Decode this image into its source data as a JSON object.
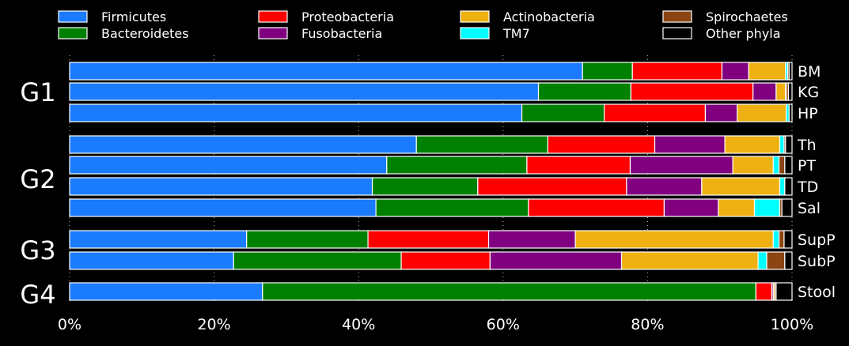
{
  "chart_data": {
    "type": "bar",
    "orientation": "horizontal",
    "stacked": true,
    "normalized": true,
    "title": "",
    "xlabel": "",
    "ylabel": "",
    "xlim": [
      0,
      100
    ],
    "x_ticks": [
      "0%",
      "20%",
      "40%",
      "60%",
      "80%",
      "100%"
    ],
    "grid": "vertical dotted",
    "legend": "top",
    "series_order": [
      "Firmicutes",
      "Bacteroidetes",
      "Proteobacteria",
      "Fusobacteria",
      "Actinobacteria",
      "TM7",
      "Spirochaetes",
      "Other phyla"
    ],
    "legend_entries": [
      {
        "name": "Firmicutes",
        "color": "#1a7bff"
      },
      {
        "name": "Bacteroidetes",
        "color": "#008000"
      },
      {
        "name": "Proteobacteria",
        "color": "#ff0000"
      },
      {
        "name": "Fusobacteria",
        "color": "#800080"
      },
      {
        "name": "Actinobacteria",
        "color": "#eeb111"
      },
      {
        "name": "TM7",
        "color": "#00ffff"
      },
      {
        "name": "Spirochaetes",
        "color": "#8b4513"
      },
      {
        "name": "Other phyla",
        "color": "#000000"
      }
    ],
    "groups": [
      {
        "label": "G1",
        "rows": [
          {
            "label": "BM",
            "values": [
              71.0,
              6.9,
              12.4,
              3.7,
              5.1,
              0.3,
              0.2,
              0.4
            ]
          },
          {
            "label": "KG",
            "values": [
              64.9,
              12.8,
              16.9,
              3.2,
              1.3,
              0.1,
              0.3,
              0.5
            ]
          },
          {
            "label": "HP",
            "values": [
              62.6,
              11.4,
              14.0,
              4.4,
              6.8,
              0.4,
              0.0,
              0.4
            ]
          }
        ]
      },
      {
        "label": "G2",
        "rows": [
          {
            "label": "Th",
            "values": [
              48.0,
              18.2,
              14.8,
              9.7,
              7.6,
              0.6,
              0.2,
              0.9
            ]
          },
          {
            "label": "PT",
            "values": [
              43.9,
              19.4,
              14.3,
              14.2,
              5.6,
              0.8,
              0.8,
              1.0
            ]
          },
          {
            "label": "TD",
            "values": [
              41.9,
              14.6,
              20.6,
              10.4,
              10.8,
              0.7,
              0.0,
              1.0
            ]
          },
          {
            "label": "Sal",
            "values": [
              42.4,
              21.1,
              18.8,
              7.5,
              5.0,
              3.5,
              0.3,
              1.4
            ]
          }
        ]
      },
      {
        "label": "G3",
        "rows": [
          {
            "label": "SupP",
            "values": [
              24.5,
              16.8,
              16.7,
              12.0,
              27.4,
              0.8,
              0.7,
              1.1
            ]
          },
          {
            "label": "SubP",
            "values": [
              22.7,
              23.2,
              12.3,
              18.2,
              18.9,
              1.2,
              2.5,
              1.0
            ]
          }
        ]
      },
      {
        "label": "G4",
        "rows": [
          {
            "label": "Stool",
            "values": [
              26.7,
              68.3,
              2.2,
              0.2,
              0.2,
              0.0,
              0.2,
              2.2
            ]
          }
        ]
      }
    ]
  }
}
